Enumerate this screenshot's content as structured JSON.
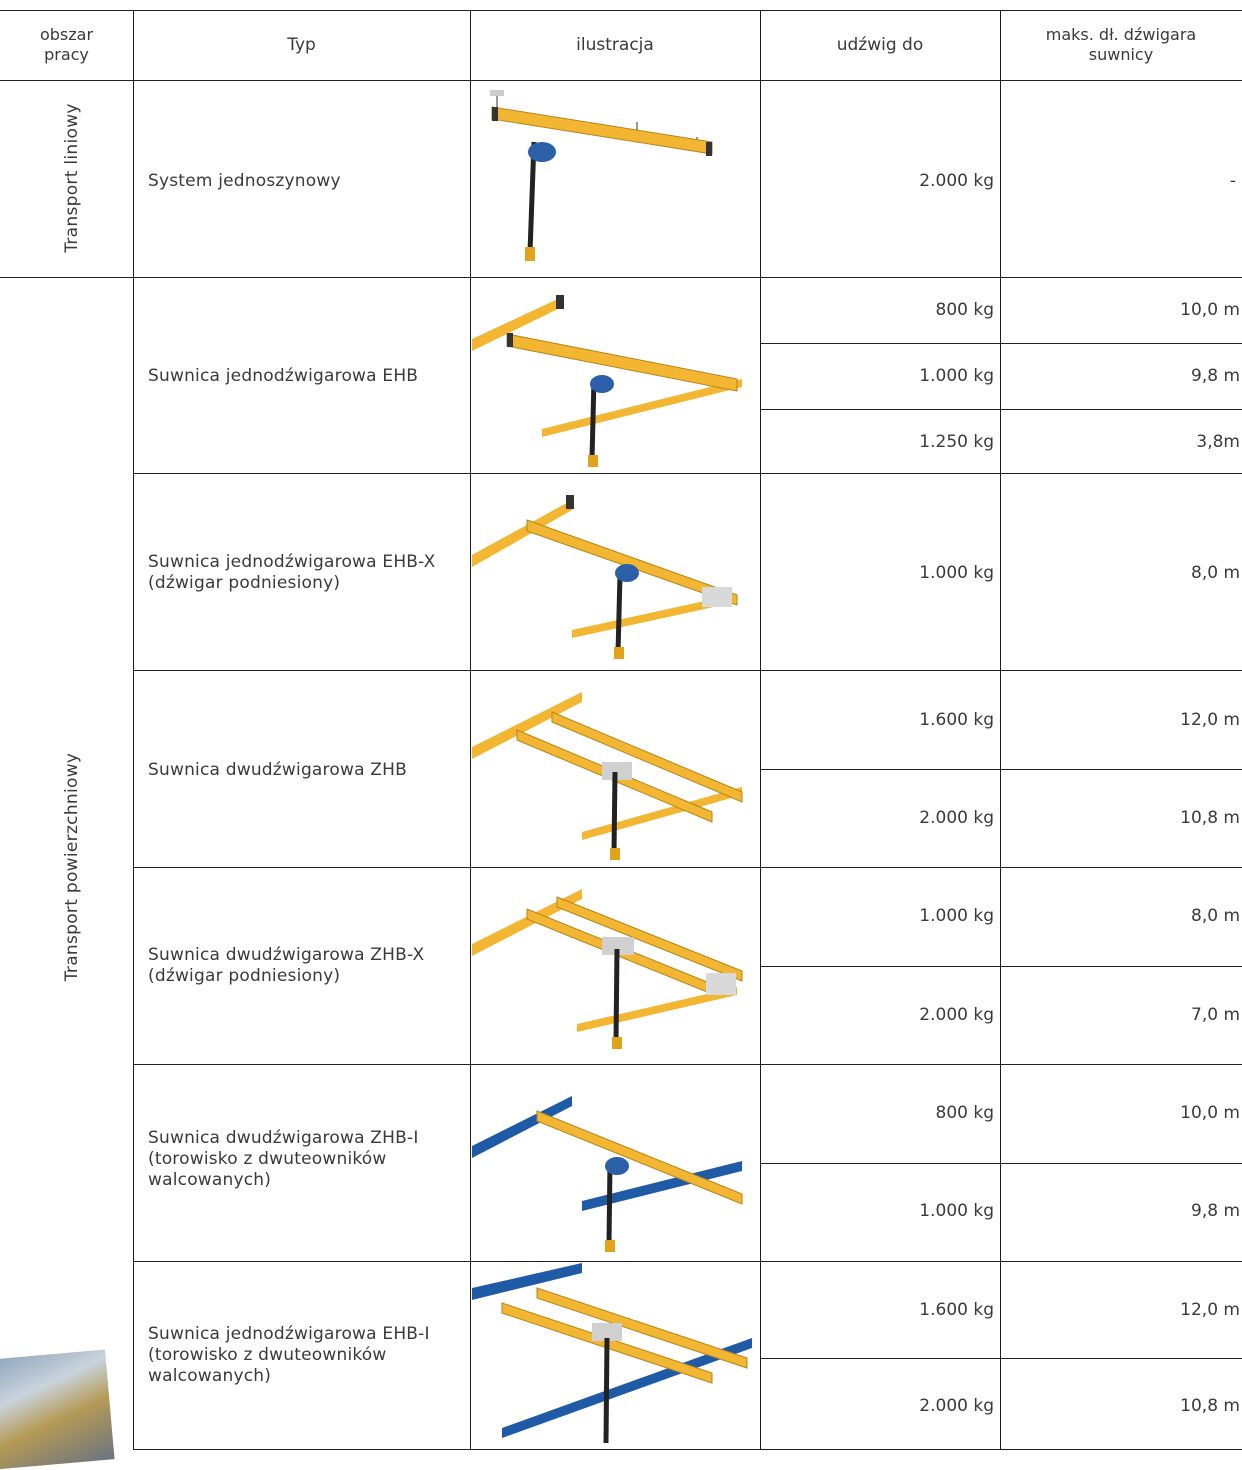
{
  "header": {
    "area": "obszar\npracy",
    "type": "Typ",
    "illustration": "ilustracja",
    "capacity": "udźwig do",
    "span": "maks. dł. dźwigara\nsuwnicy"
  },
  "areas": {
    "linear": "Transport liniowy",
    "surface": "Transport powierzchniowy"
  },
  "rows": [
    {
      "type": "System jednoszynowy",
      "illustration": "monorail-illustration",
      "capacities": [
        "2.000 kg"
      ],
      "spans": [
        "-"
      ]
    },
    {
      "type": "Suwnica jednodźwigarowa EHB",
      "illustration": "single-girder-crane-illustration",
      "capacities": [
        "800 kg",
        "1.000 kg",
        "1.250 kg"
      ],
      "spans": [
        "10,0 m",
        "9,8 m",
        "3,8m"
      ]
    },
    {
      "type": "Suwnica jednodźwigarowa EHB-X (dźwigar podniesiony)",
      "illustration": "single-girder-raised-crane-illustration",
      "capacities": [
        "1.000 kg"
      ],
      "spans": [
        "8,0 m"
      ]
    },
    {
      "type": "Suwnica dwudźwigarowa ZHB",
      "illustration": "double-girder-crane-illustration",
      "capacities": [
        "1.600 kg",
        "2.000 kg"
      ],
      "spans": [
        "12,0 m",
        "10,8 m"
      ]
    },
    {
      "type": "Suwnica dwudźwigarowa ZHB-X (dźwigar podniesiony)",
      "illustration": "double-girder-raised-crane-illustration",
      "capacities": [
        "1.000 kg",
        "2.000 kg"
      ],
      "spans": [
        "8,0 m",
        "7,0 m"
      ]
    },
    {
      "type": "Suwnica dwudźwigarowa ZHB-I (torowisko z dwuteowników walcowanych)",
      "illustration": "double-girder-i-beam-crane-illustration",
      "capacities": [
        "800 kg",
        "1.000 kg"
      ],
      "spans": [
        "10,0 m",
        "9,8 m"
      ]
    },
    {
      "type": "Suwnica jednodźwigarowa EHB-I (torowisko z dwuteowników walcowanych)",
      "illustration": "single-girder-i-beam-crane-illustration",
      "capacities": [
        "1.600 kg",
        "2.000 kg"
      ],
      "spans": [
        "12,0 m",
        "10,8 m"
      ]
    }
  ],
  "colors": {
    "rail_yellow": "#f2b632",
    "rail_blue": "#1f5aa6",
    "hoist_blue": "#2b5fa8",
    "line": "#1e1e1e"
  }
}
